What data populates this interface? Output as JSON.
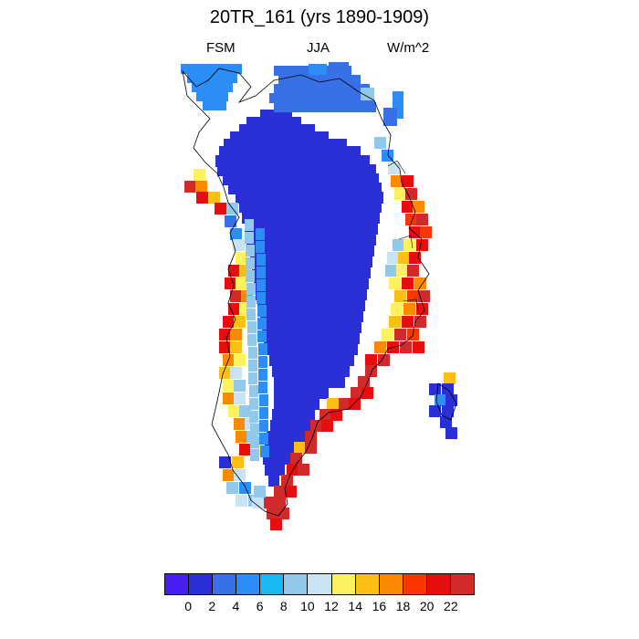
{
  "title": "20TR_161 (yrs 1890-1909)",
  "subtitle_left": "FSM",
  "subtitle_center": "JJA",
  "subtitle_right": "W/m^2",
  "colorbar": {
    "colors": [
      "#4a1df0",
      "#2a2fd6",
      "#3870e8",
      "#2a8ef6",
      "#19b8f0",
      "#92c8ea",
      "#c8e4f4",
      "#fdf15f",
      "#fcc014",
      "#fb8a00",
      "#f83800",
      "#e60e0e",
      "#d02a2a"
    ],
    "labels": [
      "0",
      "2",
      "4",
      "6",
      "8",
      "10",
      "12",
      "14",
      "16",
      "18",
      "20",
      "22"
    ]
  }
}
